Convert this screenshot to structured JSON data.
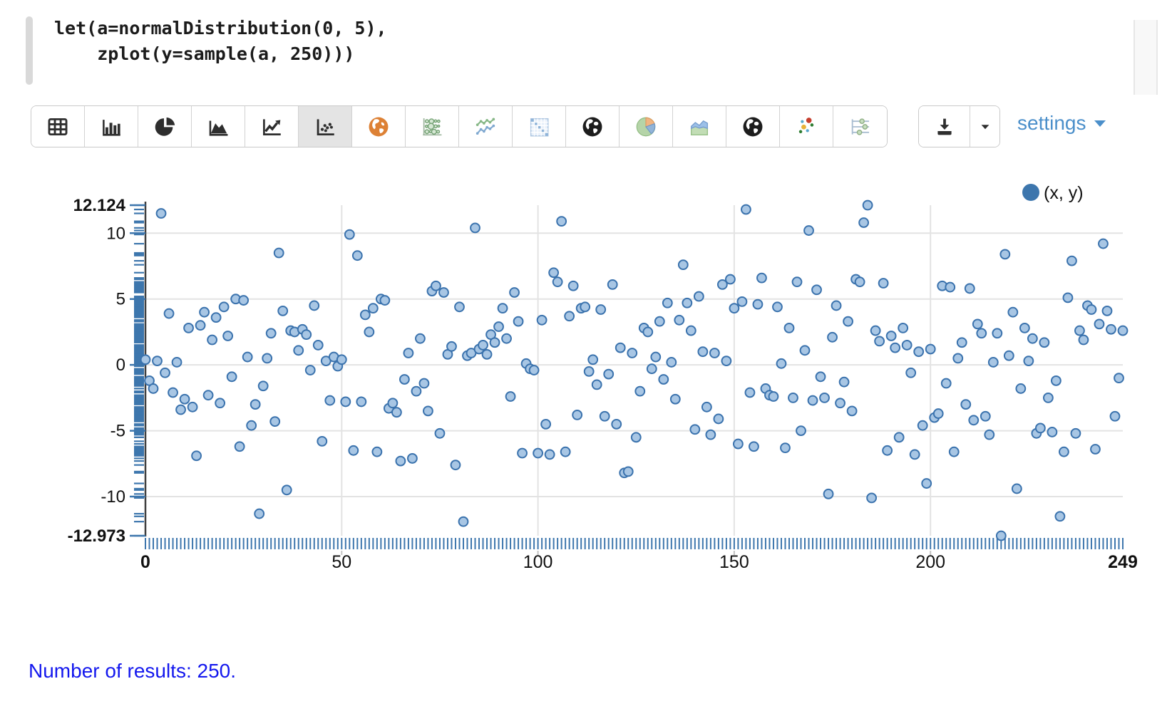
{
  "code_editor": {
    "lines": [
      "let(a=normalDistribution(0, 5),",
      "    zplot(y=sample(a, 250)))"
    ]
  },
  "toolbar": {
    "chart_types": [
      {
        "id": "table",
        "icon": "table-icon",
        "selected": false
      },
      {
        "id": "bar-chart",
        "icon": "bar-chart-icon",
        "selected": false
      },
      {
        "id": "pie-chart",
        "icon": "pie-chart-icon",
        "selected": false
      },
      {
        "id": "area-chart",
        "icon": "area-chart-icon",
        "selected": false
      },
      {
        "id": "line-chart",
        "icon": "line-chart-icon",
        "selected": false
      },
      {
        "id": "scatter-plot",
        "icon": "scatter-plot-icon",
        "selected": true
      },
      {
        "id": "geo-map-orange",
        "icon": "globe-orange-icon",
        "selected": false
      },
      {
        "id": "bubble-chart",
        "icon": "bubble-chart-icon",
        "selected": false
      },
      {
        "id": "multi-line-chart",
        "icon": "multi-line-chart-icon",
        "selected": false
      },
      {
        "id": "table-heatmap",
        "icon": "table-heatmap-icon",
        "selected": false
      },
      {
        "id": "geo-chart",
        "icon": "globe-dark-icon",
        "selected": false
      },
      {
        "id": "color-pie-chart",
        "icon": "color-pie-chart-icon",
        "selected": false
      },
      {
        "id": "stacked-area-chart",
        "icon": "stacked-area-chart-icon",
        "selected": false
      },
      {
        "id": "geo-chart-2",
        "icon": "globe-dark-icon",
        "selected": false
      },
      {
        "id": "color-scatter-chart",
        "icon": "color-scatter-icon",
        "selected": false
      },
      {
        "id": "controls",
        "icon": "controls-sliders-icon",
        "selected": false
      }
    ],
    "export_buttons": [
      {
        "id": "download",
        "icon": "download-icon"
      },
      {
        "id": "download-options",
        "icon": "caret-down-icon"
      }
    ],
    "settings_label": "settings"
  },
  "chart_data": {
    "type": "scatter",
    "title": "",
    "xlabel": "",
    "ylabel": "",
    "legend": {
      "label": "(x, y)",
      "color": "#3d76ad",
      "position": "top-right"
    },
    "xlim": [
      0,
      249
    ],
    "ylim": [
      -12.973,
      12.124
    ],
    "y_max_label": "12.124",
    "y_min_label": "-12.973",
    "y_ticks": [
      10,
      5,
      0,
      -5,
      -10
    ],
    "x_ticks": [
      {
        "v": 0,
        "bold": true
      },
      {
        "v": 50
      },
      {
        "v": 100
      },
      {
        "v": 150
      },
      {
        "v": 200
      },
      {
        "v": 249,
        "bold": true
      }
    ],
    "x_gridlines": [
      50,
      100,
      150,
      200
    ],
    "grid": true,
    "rug": {
      "x": true,
      "y": true
    },
    "colors": {
      "point_fill": "#a8c6e4",
      "point_stroke": "#3a72ad",
      "rug": "#3d76ad",
      "grid": "#e3e3e3",
      "axis": "#3f3f3f",
      "tick_text": "#111111"
    },
    "series": [
      {
        "name": "(x, y)",
        "x_mode": "index",
        "y": [
          0.4,
          -1.2,
          -1.8,
          0.3,
          11.5,
          -0.6,
          3.9,
          -2.1,
          0.2,
          -3.4,
          -2.6,
          2.8,
          -3.2,
          -6.9,
          3.0,
          4.0,
          -2.3,
          1.9,
          3.6,
          -2.9,
          4.4,
          2.2,
          -0.9,
          5.0,
          -6.2,
          4.9,
          0.6,
          -4.6,
          -3.0,
          -11.3,
          -1.6,
          0.5,
          2.4,
          -4.3,
          8.5,
          4.1,
          -9.5,
          2.6,
          2.5,
          1.1,
          2.7,
          2.3,
          -0.4,
          4.5,
          1.5,
          -5.8,
          0.3,
          -2.7,
          0.6,
          -0.1,
          0.4,
          -2.8,
          9.9,
          -6.5,
          8.3,
          -2.8,
          3.8,
          2.5,
          4.3,
          -6.6,
          5.0,
          4.9,
          -3.3,
          -2.9,
          -3.6,
          -7.3,
          -1.1,
          0.9,
          -7.1,
          -2.0,
          2.0,
          -1.4,
          -3.5,
          5.6,
          6.0,
          -5.2,
          5.5,
          0.8,
          1.4,
          -7.6,
          4.4,
          -11.9,
          0.7,
          0.9,
          10.4,
          1.2,
          1.5,
          0.8,
          2.3,
          1.7,
          2.9,
          4.3,
          2.0,
          -2.4,
          5.5,
          3.3,
          -6.7,
          0.1,
          -0.3,
          -0.4,
          -6.7,
          3.4,
          -4.5,
          -6.8,
          7.0,
          6.3,
          10.9,
          -6.6,
          3.7,
          6.0,
          -3.8,
          4.3,
          4.4,
          -0.5,
          0.4,
          -1.5,
          4.2,
          -3.9,
          -0.7,
          6.1,
          -4.5,
          1.3,
          -8.2,
          -8.1,
          0.9,
          -5.5,
          -2.0,
          2.8,
          2.5,
          -0.3,
          0.6,
          3.3,
          -1.1,
          4.7,
          0.2,
          -2.6,
          3.4,
          7.6,
          4.7,
          2.6,
          -4.9,
          5.2,
          1.0,
          -3.2,
          -5.3,
          0.9,
          -4.1,
          6.1,
          0.3,
          6.5,
          4.3,
          -6.0,
          4.8,
          11.8,
          -2.1,
          -6.2,
          4.6,
          6.6,
          -1.8,
          -2.3,
          -2.4,
          4.4,
          0.1,
          -6.3,
          2.8,
          -2.5,
          6.3,
          -5.0,
          1.1,
          10.2,
          -2.7,
          5.7,
          -0.9,
          -2.5,
          -9.8,
          2.1,
          4.5,
          -2.9,
          -1.3,
          3.3,
          -3.5,
          6.5,
          6.3,
          10.8,
          12.124,
          -10.1,
          2.6,
          1.8,
          6.2,
          -6.5,
          2.2,
          1.3,
          -5.5,
          2.8,
          1.5,
          -0.6,
          -6.8,
          1.0,
          -4.6,
          -9.0,
          1.2,
          -4.0,
          -3.7,
          6.0,
          -1.4,
          5.9,
          -6.6,
          0.5,
          1.7,
          -3.0,
          5.8,
          -4.2,
          3.1,
          2.4,
          -3.9,
          -5.3,
          0.2,
          2.4,
          -12.973,
          8.4,
          0.7,
          4.0,
          -9.4,
          -1.8,
          2.8,
          0.3,
          2.0,
          -5.2,
          -4.8,
          1.7,
          -2.5,
          -5.1,
          -1.2,
          -11.5,
          -6.6,
          5.1,
          7.9,
          -5.2,
          2.6,
          1.9,
          4.5,
          4.2,
          -6.4,
          3.1,
          9.2,
          4.1,
          2.7,
          -3.9,
          -1.0,
          2.6
        ]
      }
    ]
  },
  "status": {
    "results_text": "Number of results: 250."
  },
  "colors": {
    "accent_blue": "#4b8fca",
    "link_blue": "#1418ee",
    "selected_button_bg": "#e4e4e4"
  }
}
